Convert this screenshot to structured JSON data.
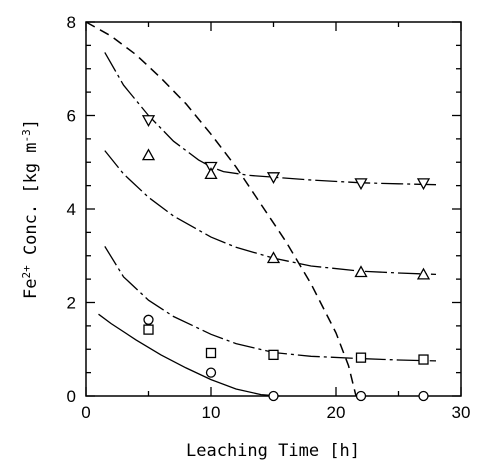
{
  "chart_data": {
    "type": "scatter",
    "xlabel": "Leaching Time  [h]",
    "ylabel": {
      "base": "Fe",
      "sup": "2+",
      "rest": " Conc.  [kg m",
      "unit_sup": "-3",
      "close": "]"
    },
    "xlim": [
      0,
      30
    ],
    "ylim": [
      0,
      8
    ],
    "xticks": [
      0,
      10,
      20,
      30
    ],
    "yticks": [
      0,
      2,
      4,
      6,
      8
    ],
    "grid": false,
    "series": [
      {
        "marker": "triangle-down",
        "points": [
          [
            5,
            5.9
          ],
          [
            10,
            4.9
          ],
          [
            15,
            4.68
          ],
          [
            22,
            4.55
          ],
          [
            27,
            4.55
          ]
        ],
        "curve": [
          [
            1.5,
            7.35
          ],
          [
            3,
            6.65
          ],
          [
            5,
            6.0
          ],
          [
            7,
            5.45
          ],
          [
            9,
            5.05
          ],
          [
            10,
            4.9
          ],
          [
            11,
            4.8
          ],
          [
            13,
            4.72
          ],
          [
            15,
            4.68
          ],
          [
            18,
            4.62
          ],
          [
            22,
            4.56
          ],
          [
            25,
            4.54
          ],
          [
            28,
            4.52
          ]
        ],
        "curve_style": "dash-dot"
      },
      {
        "marker": "triangle-up",
        "points": [
          [
            5,
            5.15
          ],
          [
            10,
            4.75
          ],
          [
            15,
            2.95
          ],
          [
            22,
            2.65
          ],
          [
            27,
            2.6
          ]
        ],
        "curve": [
          [
            1.5,
            5.25
          ],
          [
            3,
            4.75
          ],
          [
            5,
            4.25
          ],
          [
            7,
            3.85
          ],
          [
            10,
            3.4
          ],
          [
            12,
            3.18
          ],
          [
            15,
            2.95
          ],
          [
            18,
            2.78
          ],
          [
            22,
            2.67
          ],
          [
            25,
            2.63
          ],
          [
            28,
            2.6
          ]
        ],
        "curve_style": "dash-dot"
      },
      {
        "marker": "square",
        "points": [
          [
            5,
            1.42
          ],
          [
            10,
            0.92
          ],
          [
            15,
            0.88
          ],
          [
            22,
            0.82
          ],
          [
            27,
            0.78
          ]
        ],
        "curve": [
          [
            1.5,
            3.2
          ],
          [
            3,
            2.55
          ],
          [
            5,
            2.05
          ],
          [
            7,
            1.7
          ],
          [
            10,
            1.32
          ],
          [
            12,
            1.12
          ],
          [
            15,
            0.93
          ],
          [
            18,
            0.85
          ],
          [
            22,
            0.8
          ],
          [
            25,
            0.77
          ],
          [
            28,
            0.75
          ]
        ],
        "curve_style": "dash-dot"
      },
      {
        "marker": "circle",
        "points": [
          [
            5,
            1.63
          ],
          [
            10,
            0.5
          ],
          [
            15,
            0.0
          ],
          [
            22,
            0.0
          ],
          [
            27,
            0.0
          ]
        ],
        "curve": [
          [
            1,
            1.75
          ],
          [
            2,
            1.55
          ],
          [
            4,
            1.2
          ],
          [
            6,
            0.88
          ],
          [
            8,
            0.6
          ],
          [
            10,
            0.35
          ],
          [
            12,
            0.15
          ],
          [
            14,
            0.03
          ],
          [
            15.5,
            0.0
          ]
        ],
        "curve_style": "solid"
      }
    ],
    "boundary_curve": {
      "style": "dashed",
      "points": [
        [
          0,
          8.0
        ],
        [
          2,
          7.7
        ],
        [
          4,
          7.3
        ],
        [
          6,
          6.8
        ],
        [
          8,
          6.25
        ],
        [
          10,
          5.6
        ],
        [
          12,
          4.9
        ],
        [
          14,
          4.1
        ],
        [
          16,
          3.3
        ],
        [
          18,
          2.4
        ],
        [
          20,
          1.35
        ],
        [
          21,
          0.65
        ],
        [
          21.6,
          0.0
        ]
      ]
    }
  }
}
